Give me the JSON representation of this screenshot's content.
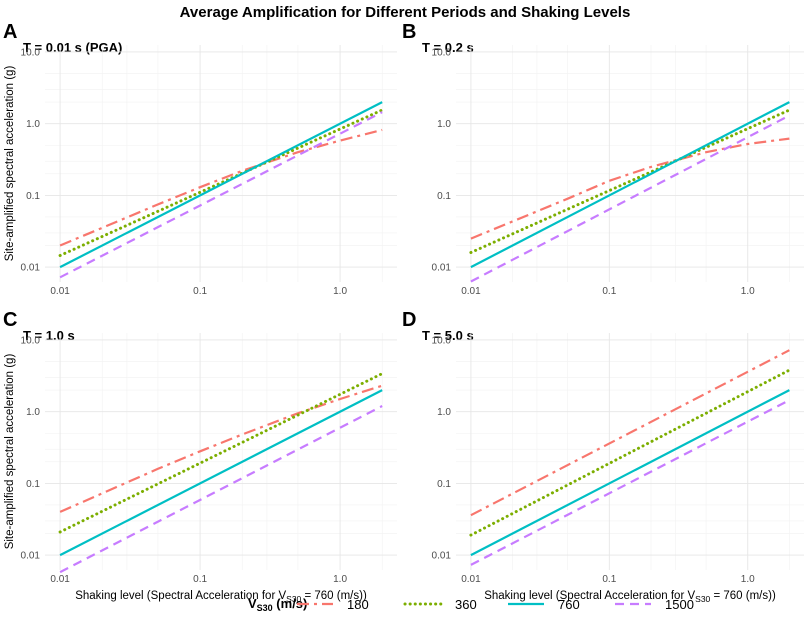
{
  "figure": {
    "title": "Average Amplification for Different Periods and Shaking Levels",
    "y_label": "Site-amplified spectral acceleration (g)",
    "x_label_main": "Shaking level (Spectral Acceleration for V",
    "x_label_sub": "S30",
    "x_label_tail": " = 760 (m/s))",
    "legend": {
      "title_main": "V",
      "title_sub": "S30",
      "title_tail": " (m/s)",
      "entries": [
        "180",
        "360",
        "760",
        "1500"
      ]
    }
  },
  "chart_data": [
    {
      "type": "line",
      "panel": "A",
      "title": "T = 0.01 s (PGA)",
      "x": [
        0.01,
        2.0
      ],
      "xlim": [
        0.01,
        2.0
      ],
      "ylim": [
        0.01,
        10.0
      ],
      "scale": "log-log",
      "xticks": [
        "0.01",
        "0.1",
        "1.0"
      ],
      "yticks": [
        "0.01",
        "0.1",
        "1.0",
        "10.0"
      ],
      "series": [
        {
          "name": "180",
          "x": [
            0.01,
            0.05,
            0.1,
            0.2,
            0.5,
            1.0,
            2.0
          ],
          "values": [
            0.02,
            0.075,
            0.13,
            0.22,
            0.4,
            0.58,
            0.82
          ]
        },
        {
          "name": "360",
          "x": [
            0.01,
            2.0
          ],
          "values": [
            0.0145,
            1.55
          ]
        },
        {
          "name": "760",
          "x": [
            0.01,
            2.0
          ],
          "values": [
            0.01,
            2.0
          ]
        },
        {
          "name": "1500",
          "x": [
            0.01,
            2.0
          ],
          "values": [
            0.0072,
            1.45
          ]
        }
      ]
    },
    {
      "type": "line",
      "panel": "B",
      "title": "T = 0.2 s",
      "x": [
        0.01,
        2.0
      ],
      "xlim": [
        0.01,
        2.0
      ],
      "ylim": [
        0.01,
        10.0
      ],
      "scale": "log-log",
      "xticks": [
        "0.01",
        "0.1",
        "1.0"
      ],
      "yticks": [
        "0.01",
        "0.1",
        "1.0",
        "10.0"
      ],
      "series": [
        {
          "name": "180",
          "x": [
            0.01,
            0.05,
            0.1,
            0.2,
            0.5,
            1.0,
            2.0
          ],
          "values": [
            0.025,
            0.09,
            0.16,
            0.25,
            0.4,
            0.52,
            0.62
          ]
        },
        {
          "name": "360",
          "x": [
            0.01,
            2.0
          ],
          "values": [
            0.016,
            1.55
          ]
        },
        {
          "name": "760",
          "x": [
            0.01,
            2.0
          ],
          "values": [
            0.01,
            2.0
          ]
        },
        {
          "name": "1500",
          "x": [
            0.01,
            2.0
          ],
          "values": [
            0.0063,
            1.3
          ]
        }
      ]
    },
    {
      "type": "line",
      "panel": "C",
      "title": "T = 1.0 s",
      "x": [
        0.01,
        2.0
      ],
      "xlim": [
        0.01,
        2.0
      ],
      "ylim": [
        0.01,
        10.0
      ],
      "scale": "log-log",
      "xticks": [
        "0.01",
        "0.1",
        "1.0"
      ],
      "yticks": [
        "0.01",
        "0.1",
        "1.0",
        "10.0"
      ],
      "series": [
        {
          "name": "180",
          "x": [
            0.01,
            0.05,
            0.1,
            0.2,
            0.5,
            1.0,
            2.0
          ],
          "values": [
            0.04,
            0.16,
            0.28,
            0.48,
            0.95,
            1.5,
            2.3
          ]
        },
        {
          "name": "360",
          "x": [
            0.01,
            2.0
          ],
          "values": [
            0.021,
            3.4
          ]
        },
        {
          "name": "760",
          "x": [
            0.01,
            2.0
          ],
          "values": [
            0.01,
            2.0
          ]
        },
        {
          "name": "1500",
          "x": [
            0.01,
            2.0
          ],
          "values": [
            0.0058,
            1.2
          ]
        }
      ]
    },
    {
      "type": "line",
      "panel": "D",
      "title": "T = 5.0 s",
      "x": [
        0.01,
        2.0
      ],
      "xlim": [
        0.01,
        2.0
      ],
      "ylim": [
        0.01,
        10.0
      ],
      "scale": "log-log",
      "xticks": [
        "0.01",
        "0.1",
        "1.0"
      ],
      "yticks": [
        "0.01",
        "0.1",
        "1.0",
        "10.0"
      ],
      "series": [
        {
          "name": "180",
          "x": [
            0.01,
            2.0
          ],
          "values": [
            0.036,
            7.2
          ]
        },
        {
          "name": "360",
          "x": [
            0.01,
            2.0
          ],
          "values": [
            0.019,
            3.8
          ]
        },
        {
          "name": "760",
          "x": [
            0.01,
            2.0
          ],
          "values": [
            0.01,
            2.0
          ]
        },
        {
          "name": "1500",
          "x": [
            0.01,
            2.0
          ],
          "values": [
            0.0073,
            1.45
          ]
        }
      ]
    }
  ],
  "styles": {
    "180": {
      "color": "#F8766D",
      "dash": "12,5,3,5",
      "cap": "butt"
    },
    "360": {
      "color": "#7CAE00",
      "dash": "0.1,5",
      "cap": "round"
    },
    "760": {
      "color": "#00BFC4",
      "dash": "",
      "cap": "butt"
    },
    "1500": {
      "color": "#C77CFF",
      "dash": "9,6",
      "cap": "butt"
    }
  }
}
